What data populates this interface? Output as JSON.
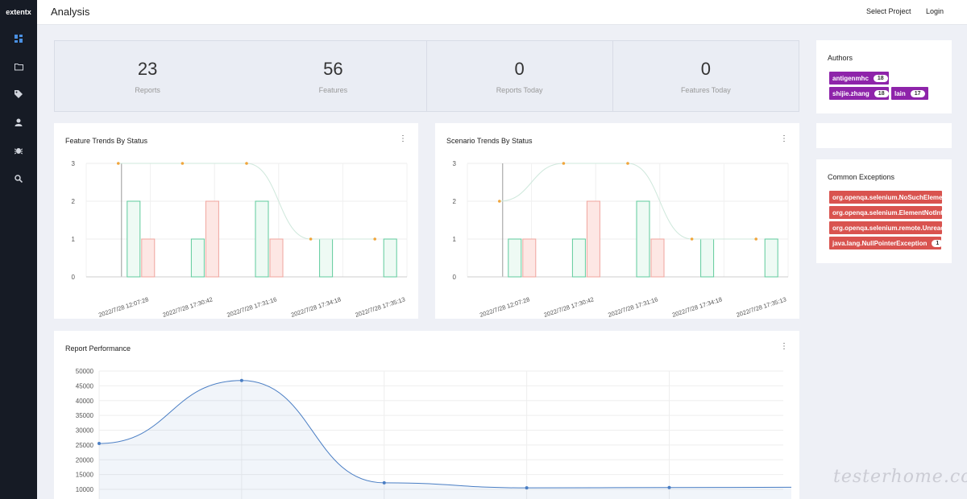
{
  "app": {
    "brand": "extentx",
    "page_title": "Analysis"
  },
  "topbar": {
    "select_project": "Select Project",
    "login": "Login"
  },
  "sidebar": {
    "items": [
      {
        "icon": "dashboard-icon"
      },
      {
        "icon": "folder-icon"
      },
      {
        "icon": "tag-icon"
      },
      {
        "icon": "user-icon"
      },
      {
        "icon": "bug-icon"
      },
      {
        "icon": "search-icon"
      }
    ]
  },
  "stats": [
    {
      "value": "23",
      "label": "Reports"
    },
    {
      "value": "56",
      "label": "Features"
    },
    {
      "value": "0",
      "label": "Reports Today"
    },
    {
      "value": "0",
      "label": "Features Today"
    }
  ],
  "authors": {
    "title": "Authors",
    "items": [
      {
        "name": "antigenmhc",
        "count": "18"
      },
      {
        "name": "shijie.zhang",
        "count": "18"
      },
      {
        "name": "lain",
        "count": "17"
      }
    ]
  },
  "exceptions": {
    "title": "Common Exceptions",
    "items": [
      {
        "name": "org.openqa.selenium.NoSuchElementException",
        "count": ""
      },
      {
        "name": "org.openqa.selenium.ElementNotInteractableException",
        "count": ""
      },
      {
        "name": "org.openqa.selenium.remote.UnreachableBrowserException",
        "count": ""
      },
      {
        "name": "java.lang.NullPointerException",
        "count": "1"
      }
    ]
  },
  "colors": {
    "pass": "#5fcb9c",
    "fail": "#f0a59e",
    "trend": "#f0a53c",
    "perf": "#4a7ec4"
  },
  "chart_data": [
    {
      "type": "bar",
      "title": "Feature Trends By Status",
      "categories": [
        "2022/7/28 12:07:28",
        "2022/7/28 17:30:42",
        "2022/7/28 17:31:16",
        "2022/7/28 17:34:18",
        "2022/7/28 17:35:13"
      ],
      "series": [
        {
          "values": [
            2,
            1,
            2,
            1,
            1
          ]
        },
        {
          "values": [
            1,
            2,
            1,
            0,
            0
          ]
        },
        {
          "values": [
            3,
            3,
            3,
            1,
            1
          ]
        }
      ],
      "ylim": [
        0,
        3
      ],
      "yticks": [
        "0",
        "1",
        "2",
        "3"
      ]
    },
    {
      "type": "bar",
      "title": "Scenario Trends By Status",
      "categories": [
        "2022/7/28 12:07:28",
        "2022/7/28 17:30:42",
        "2022/7/28 17:31:16",
        "2022/7/28 17:34:18",
        "2022/7/28 17:35:13"
      ],
      "series": [
        {
          "values": [
            1,
            1,
            2,
            1,
            1
          ]
        },
        {
          "values": [
            1,
            2,
            1,
            0,
            0
          ]
        },
        {
          "values": [
            2,
            3,
            3,
            1,
            1
          ]
        }
      ],
      "ylim": [
        0,
        3
      ],
      "yticks": [
        "0",
        "1",
        "2",
        "3"
      ]
    },
    {
      "type": "area",
      "title": "Report Performance",
      "x": [
        1,
        2,
        3,
        4,
        5
      ],
      "values": [
        25500,
        46800,
        12200,
        10500,
        10600
      ],
      "ylim": [
        10000,
        50000
      ],
      "yticks": [
        "10000",
        "15000",
        "20000",
        "25000",
        "30000",
        "35000",
        "40000",
        "45000",
        "50000"
      ]
    }
  ],
  "watermark": "testerhome.com"
}
